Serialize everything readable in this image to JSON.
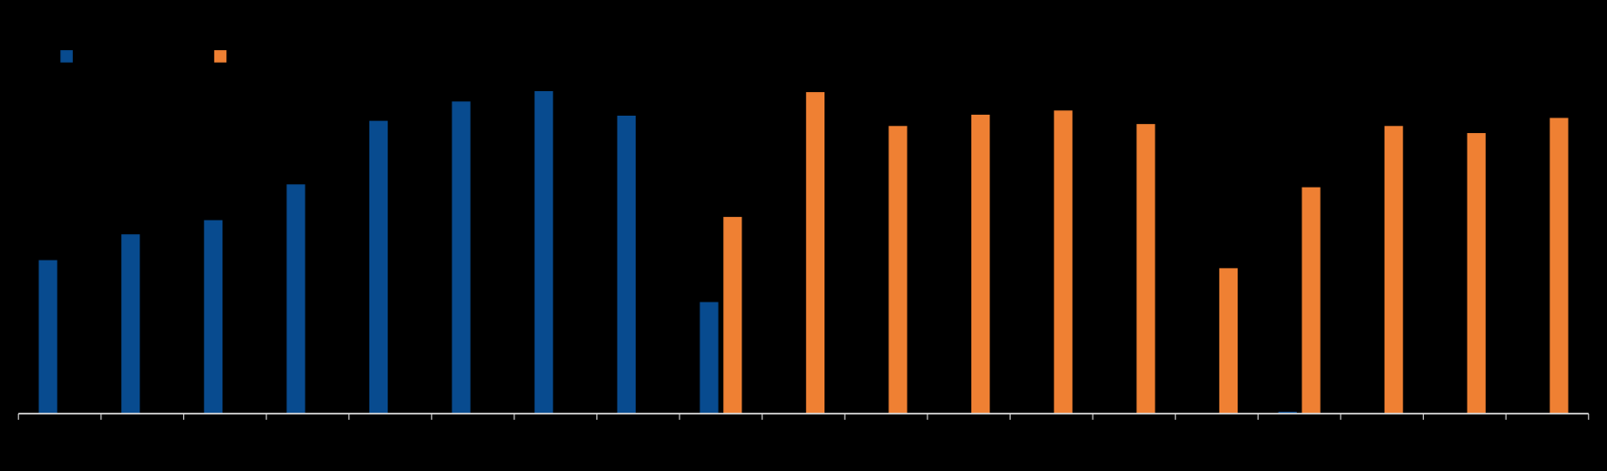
{
  "chart_data": {
    "type": "bar",
    "categories": [
      null,
      null,
      null,
      null,
      null,
      null,
      null,
      null,
      null,
      null,
      null,
      null,
      null,
      null,
      null,
      null,
      null,
      null,
      null
    ],
    "series": [
      {
        "color": "#084b8f",
        "values": [
          47.6,
          55.6,
          60,
          71.1,
          90.8,
          96.8,
          100,
          92.4,
          34.6,
          0,
          0,
          null,
          null,
          null,
          null,
          0.6,
          null,
          null,
          null
        ]
      },
      {
        "color": "#ef8033",
        "values": [
          null,
          null,
          null,
          null,
          null,
          null,
          null,
          0,
          61,
          99.7,
          89.2,
          92.7,
          94,
          89.8,
          45.1,
          70.2,
          89.2,
          87,
          91.7
        ]
      }
    ],
    "ylim": [
      0,
      100
    ]
  }
}
